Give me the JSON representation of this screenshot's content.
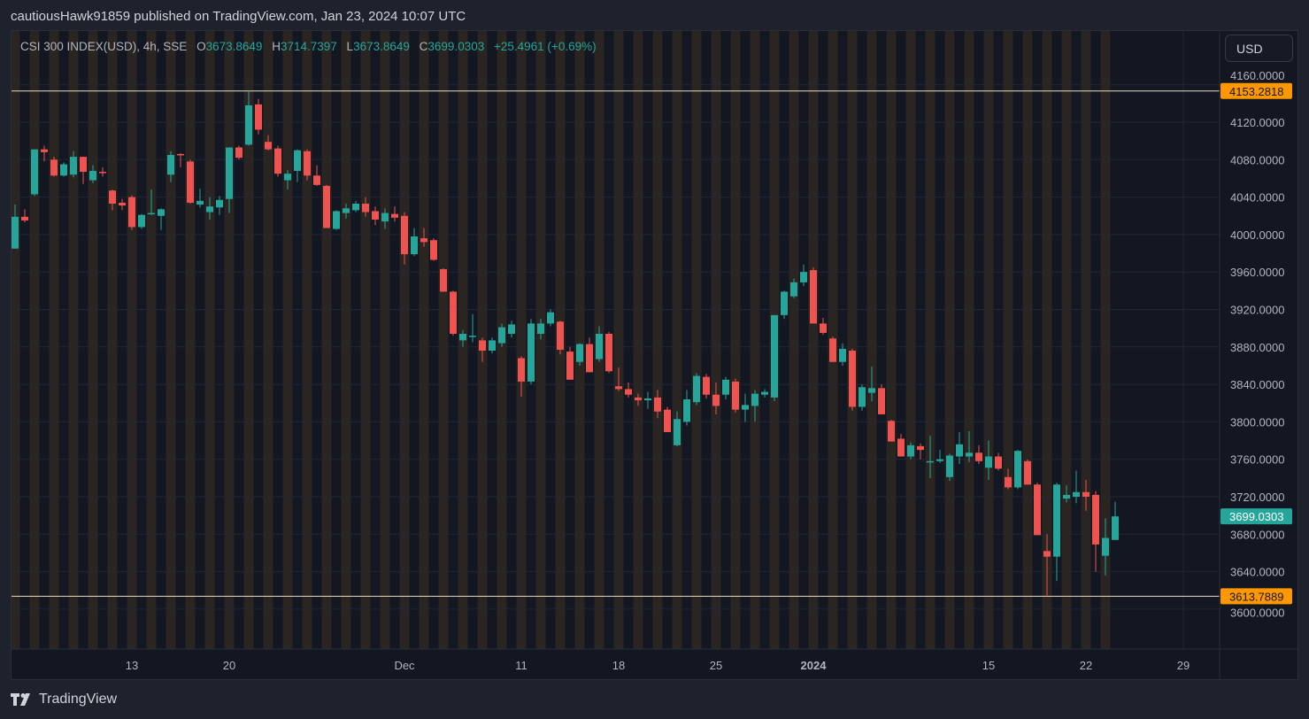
{
  "header": {
    "publisher_line": "cautiousHawk91859 published on TradingView.com, Jan 23, 2024 10:07 UTC"
  },
  "legend": {
    "symbol": "CSI 300 INDEX(USD), 4h, SSE",
    "o_label": "O",
    "o": "3673.8649",
    "h_label": "H",
    "h": "3714.7397",
    "l_label": "L",
    "l": "3673.8649",
    "c_label": "C",
    "c": "3699.0303",
    "change": "+25.4961 (+0.69%)"
  },
  "currency_button": "USD",
  "footer": {
    "brand": "TradingView",
    "logo_icon": "tradingview-logo-icon"
  },
  "colors": {
    "up": "#26a69a",
    "down": "#ef5350",
    "marker_line": "#f0a830",
    "background": "#131722",
    "session_stripe": "#2a2520"
  },
  "chart_data": {
    "type": "candlestick",
    "interval": "4h",
    "y_ticks": [
      4160,
      4120,
      4080,
      4040,
      4000,
      3960,
      3920,
      3880,
      3840,
      3800,
      3760,
      3720,
      3680,
      3640,
      3600
    ],
    "y_tick_labels": [
      "4160.0000",
      "4120.0000",
      "4080.0000",
      "4040.0000",
      "4000.0000",
      "3960.0000",
      "3920.0000",
      "3880.0000",
      "3840.0000",
      "3800.0000",
      "3760.0000",
      "3720.0000",
      "3680.0000",
      "3640.0000",
      "3600.0000"
    ],
    "x_ticks": [
      {
        "label": "13",
        "at_bar": 12,
        "bold": false
      },
      {
        "label": "20",
        "at_bar": 22,
        "bold": false
      },
      {
        "label": "Dec",
        "at_bar": 40,
        "bold": false
      },
      {
        "label": "11",
        "at_bar": 52,
        "bold": false
      },
      {
        "label": "18",
        "at_bar": 62,
        "bold": false
      },
      {
        "label": "25",
        "at_bar": 72,
        "bold": false
      },
      {
        "label": "2024",
        "at_bar": 82,
        "bold": true
      },
      {
        "label": "15",
        "at_bar": 100,
        "bold": false
      },
      {
        "label": "22",
        "at_bar": 110,
        "bold": false
      },
      {
        "label": "29",
        "at_bar": 120,
        "bold": false
      }
    ],
    "price_markers": [
      {
        "value": 4153.2818,
        "label": "4153.2818",
        "kind": "high"
      },
      {
        "value": 3699.0303,
        "label": "3699.0303",
        "kind": "last"
      },
      {
        "value": 3613.7889,
        "label": "3613.7889",
        "kind": "low"
      }
    ],
    "ohlc": [
      [
        3985,
        4032,
        3985,
        4019
      ],
      [
        4019,
        4027,
        4013,
        4015
      ],
      [
        4043,
        4091,
        4041,
        4091
      ],
      [
        4091,
        4095,
        4078,
        4088
      ],
      [
        4080,
        4083,
        4062,
        4063
      ],
      [
        4063,
        4077,
        4062,
        4075
      ],
      [
        4064,
        4089,
        4061,
        4083
      ],
      [
        4083,
        4083,
        4054,
        4067
      ],
      [
        4058,
        4074,
        4055,
        4068
      ],
      [
        4067,
        4072,
        4062,
        4066
      ],
      [
        4047,
        4048,
        4026,
        4033
      ],
      [
        4034,
        4038,
        4026,
        4031
      ],
      [
        4040,
        4042,
        4005,
        4008
      ],
      [
        4008,
        4022,
        4006,
        4021
      ],
      [
        4023,
        4048,
        4021,
        4023
      ],
      [
        4020,
        4028,
        4005,
        4027
      ],
      [
        4064,
        4089,
        4056,
        4085
      ],
      [
        4086,
        4087,
        4072,
        4085
      ],
      [
        4078,
        4080,
        4033,
        4034
      ],
      [
        4032,
        4049,
        4029,
        4036
      ],
      [
        4024,
        4040,
        4016,
        4030
      ],
      [
        4029,
        4041,
        4021,
        4037
      ],
      [
        4038,
        4093,
        4023,
        4093
      ],
      [
        4093,
        4095,
        4080,
        4082
      ],
      [
        4096,
        4153.28,
        4095,
        4138
      ],
      [
        4139,
        4145,
        4107,
        4112
      ],
      [
        4099,
        4106,
        4090,
        4091
      ],
      [
        4092,
        4095,
        4062,
        4065
      ],
      [
        4058,
        4069,
        4048,
        4065
      ],
      [
        4068,
        4091,
        4056,
        4090
      ],
      [
        4089,
        4091,
        4058,
        4063
      ],
      [
        4063,
        4074,
        4052,
        4053
      ],
      [
        4052,
        4053,
        4007,
        4007
      ],
      [
        4006,
        4026,
        4005,
        4025
      ],
      [
        4023,
        4033,
        4017,
        4028
      ],
      [
        4026,
        4036,
        4024,
        4033
      ],
      [
        4033,
        4040,
        4019,
        4024
      ],
      [
        4025,
        4030,
        4010,
        4016
      ],
      [
        4014,
        4028,
        4006,
        4023
      ],
      [
        4022,
        4030,
        4014,
        4018
      ],
      [
        4020,
        4024,
        3968,
        3979
      ],
      [
        3979,
        4007,
        3977,
        3998
      ],
      [
        3996,
        4007,
        3987,
        3992
      ],
      [
        3994,
        3996,
        3972,
        3973
      ],
      [
        3963,
        3964,
        3939,
        3939
      ],
      [
        3939,
        3940,
        3892,
        3894
      ],
      [
        3887,
        3898,
        3880,
        3894
      ],
      [
        3892,
        3915,
        3885,
        3892
      ],
      [
        3887,
        3890,
        3864,
        3876
      ],
      [
        3876,
        3890,
        3873,
        3887
      ],
      [
        3884,
        3905,
        3880,
        3901
      ],
      [
        3894,
        3908,
        3890,
        3904
      ],
      [
        3868,
        3870,
        3827,
        3843
      ],
      [
        3843,
        3910,
        3840,
        3905
      ],
      [
        3894,
        3910,
        3888,
        3905
      ],
      [
        3905,
        3920,
        3902,
        3917
      ],
      [
        3907,
        3908,
        3872,
        3877
      ],
      [
        3875,
        3880,
        3845,
        3845
      ],
      [
        3864,
        3884,
        3860,
        3883
      ],
      [
        3883,
        3890,
        3853,
        3853
      ],
      [
        3867,
        3902,
        3864,
        3894
      ],
      [
        3894,
        3896,
        3852,
        3854
      ],
      [
        3838,
        3858,
        3833,
        3835
      ],
      [
        3835,
        3842,
        3826,
        3829
      ],
      [
        3826,
        3830,
        3817,
        3823
      ],
      [
        3823,
        3832,
        3814,
        3825
      ],
      [
        3826,
        3834,
        3804,
        3811
      ],
      [
        3813,
        3816,
        3789,
        3789
      ],
      [
        3775,
        3811,
        3774,
        3803
      ],
      [
        3800,
        3834,
        3796,
        3824
      ],
      [
        3821,
        3852,
        3818,
        3849
      ],
      [
        3848,
        3851,
        3825,
        3829
      ],
      [
        3829,
        3842,
        3808,
        3817
      ],
      [
        3829,
        3848,
        3824,
        3845
      ],
      [
        3843,
        3846,
        3810,
        3813
      ],
      [
        3813,
        3830,
        3800,
        3818
      ],
      [
        3817,
        3834,
        3800,
        3830
      ],
      [
        3829,
        3835,
        3826,
        3832
      ],
      [
        3826,
        3914,
        3822,
        3914
      ],
      [
        3914,
        3940,
        3910,
        3939
      ],
      [
        3934,
        3953,
        3932,
        3949
      ],
      [
        3949,
        3968,
        3945,
        3960
      ],
      [
        3962,
        3965,
        3905,
        3905
      ],
      [
        3905,
        3911,
        3893,
        3895
      ],
      [
        3889,
        3891,
        3864,
        3864
      ],
      [
        3864,
        3884,
        3860,
        3878
      ],
      [
        3876,
        3878,
        3812,
        3816
      ],
      [
        3816,
        3840,
        3812,
        3837
      ],
      [
        3831,
        3859,
        3822,
        3836
      ],
      [
        3836,
        3840,
        3808,
        3808
      ],
      [
        3801,
        3802,
        3779,
        3779
      ],
      [
        3782,
        3787,
        3763,
        3763
      ],
      [
        3763,
        3778,
        3760,
        3775
      ],
      [
        3774,
        3777,
        3760,
        3770
      ],
      [
        3758,
        3785,
        3740,
        3758
      ],
      [
        3758,
        3770,
        3756,
        3760
      ],
      [
        3741,
        3766,
        3737,
        3764
      ],
      [
        3763,
        3789,
        3755,
        3776
      ],
      [
        3763,
        3790,
        3757,
        3767
      ],
      [
        3767,
        3775,
        3755,
        3758
      ],
      [
        3751,
        3780,
        3738,
        3763
      ],
      [
        3763,
        3767,
        3748,
        3750
      ],
      [
        3741,
        3750,
        3728,
        3730
      ],
      [
        3730,
        3770,
        3728,
        3769
      ],
      [
        3758,
        3760,
        3733,
        3733
      ],
      [
        3733,
        3735,
        3679,
        3679
      ],
      [
        3662,
        3680,
        3613.79,
        3656
      ],
      [
        3656,
        3735,
        3630,
        3733
      ],
      [
        3718,
        3732,
        3714,
        3722
      ],
      [
        3720,
        3748,
        3713,
        3725
      ],
      [
        3725,
        3738,
        3705,
        3720
      ],
      [
        3722,
        3726,
        3640,
        3669
      ],
      [
        3657,
        3697,
        3636,
        3676
      ],
      [
        3673.8649,
        3714.7397,
        3673.8649,
        3699.0303
      ]
    ]
  }
}
